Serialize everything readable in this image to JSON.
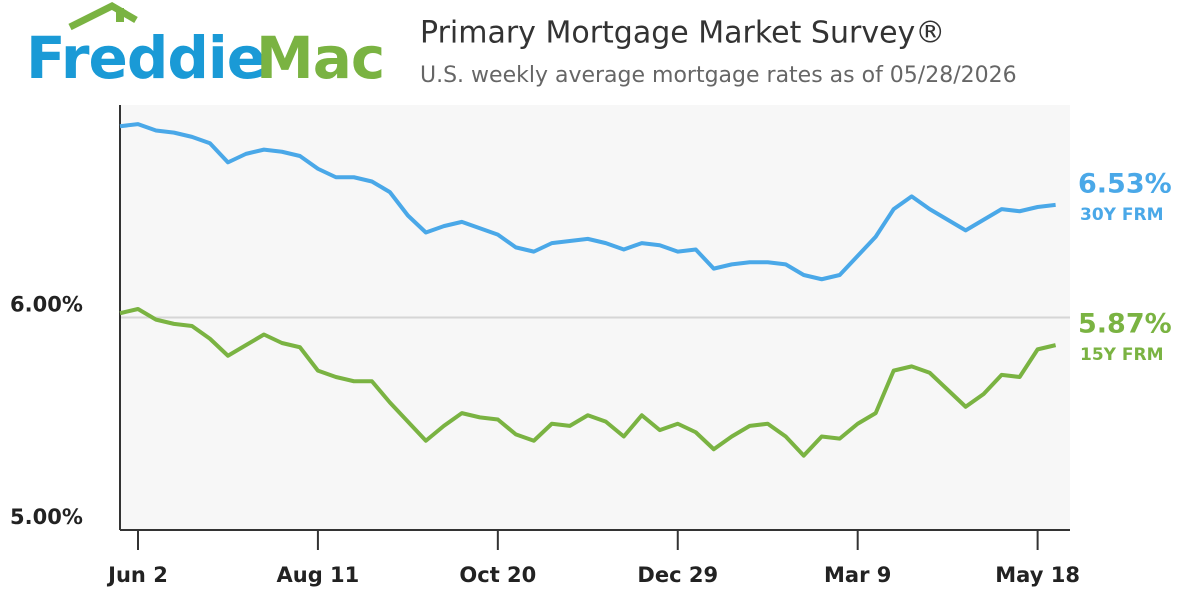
{
  "logo": [
    "Freddie",
    "Mac"
  ],
  "chart_data": {
    "type": "line",
    "title": "Primary Mortgage Market Survey®",
    "subtitle": "U.S. weekly average mortgage rates as of 05/28/2026",
    "categories": [
      null,
      "Jun 2",
      null,
      null,
      null,
      null,
      null,
      null,
      null,
      null,
      null,
      "Aug 11",
      null,
      null,
      null,
      null,
      null,
      null,
      null,
      null,
      null,
      "Oct 20",
      null,
      null,
      null,
      null,
      null,
      null,
      null,
      null,
      null,
      "Dec 29",
      null,
      null,
      null,
      null,
      null,
      null,
      null,
      null,
      null,
      "Mar 9",
      null,
      null,
      null,
      null,
      null,
      null,
      null,
      null,
      null,
      "May 18",
      null
    ],
    "series": [
      {
        "name": "30Y FRM",
        "color": "#4aa8e8",
        "last_label": "6.53%",
        "values": [
          6.9,
          6.91,
          6.88,
          6.87,
          6.85,
          6.82,
          6.73,
          6.77,
          6.79,
          6.78,
          6.76,
          6.7,
          6.66,
          6.66,
          6.64,
          6.59,
          6.48,
          6.4,
          6.43,
          6.45,
          6.42,
          6.39,
          6.33,
          6.31,
          6.35,
          6.36,
          6.37,
          6.35,
          6.32,
          6.35,
          6.34,
          6.31,
          6.32,
          6.23,
          6.25,
          6.26,
          6.26,
          6.25,
          6.2,
          6.18,
          6.2,
          6.29,
          6.38,
          6.51,
          6.57,
          6.51,
          6.46,
          6.41,
          6.46,
          6.51,
          6.5,
          6.52,
          6.53
        ]
      },
      {
        "name": "15Y FRM",
        "color": "#7ab342",
        "last_label": "5.87%",
        "values": [
          6.02,
          6.04,
          5.99,
          5.97,
          5.96,
          5.9,
          5.82,
          5.87,
          5.92,
          5.88,
          5.86,
          5.75,
          5.72,
          5.7,
          5.7,
          5.6,
          5.51,
          5.42,
          5.49,
          5.55,
          5.53,
          5.52,
          5.45,
          5.42,
          5.5,
          5.49,
          5.54,
          5.51,
          5.44,
          5.54,
          5.47,
          5.5,
          5.46,
          5.38,
          5.44,
          5.49,
          5.5,
          5.44,
          5.35,
          5.44,
          5.43,
          5.5,
          5.55,
          5.75,
          5.77,
          5.74,
          5.66,
          5.58,
          5.64,
          5.73,
          5.72,
          5.85,
          5.87
        ]
      }
    ],
    "ylim": [
      5,
      7
    ],
    "yticks": [
      {
        "value": 5,
        "label": "5.00%"
      },
      {
        "value": 6,
        "label": "6.00%"
      }
    ],
    "grid": true
  }
}
